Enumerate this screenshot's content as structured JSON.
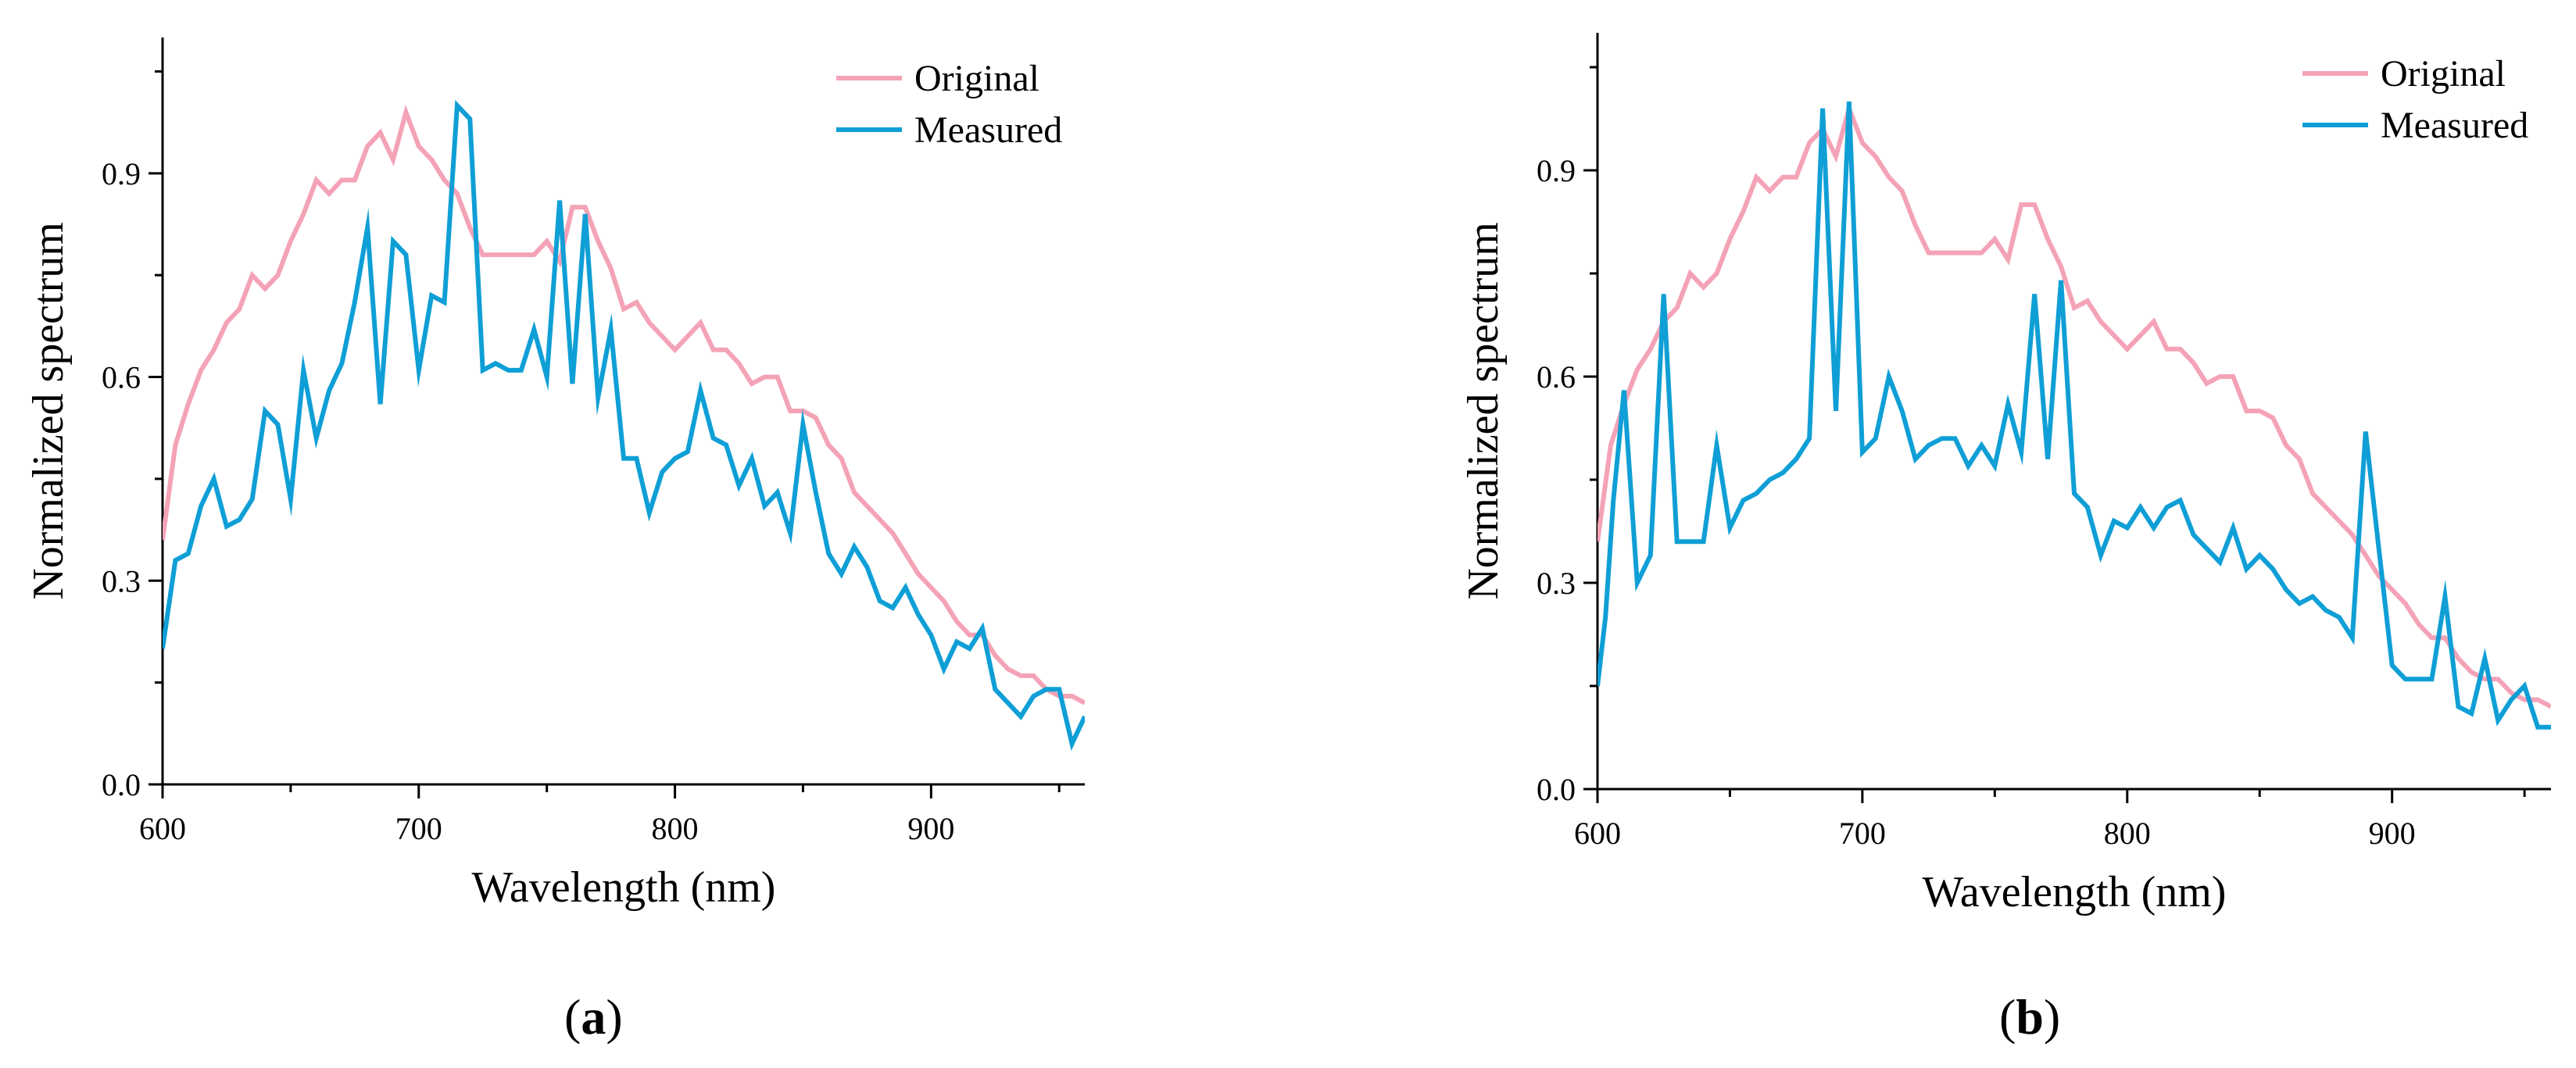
{
  "chart_data": [
    {
      "type": "line",
      "panel_label": "a",
      "xlabel": "Wavelength (nm)",
      "ylabel": "Normalized spectrum",
      "xlim": [
        600,
        960
      ],
      "ylim": [
        0,
        1.1
      ],
      "xticks": [
        600,
        700,
        800,
        900
      ],
      "yticks": [
        0.0,
        0.3,
        0.6,
        0.9
      ],
      "ytick_labels": [
        "0.0",
        "0.3",
        "0.6",
        "0.9"
      ],
      "legend_position": "top-right",
      "series": [
        {
          "name": "Original",
          "color": "#f4a3b7",
          "x": [
            600,
            605,
            610,
            615,
            620,
            625,
            630,
            635,
            640,
            645,
            650,
            655,
            660,
            665,
            670,
            675,
            680,
            685,
            690,
            695,
            700,
            705,
            710,
            715,
            720,
            725,
            730,
            735,
            740,
            745,
            750,
            755,
            760,
            765,
            770,
            775,
            780,
            785,
            790,
            795,
            800,
            805,
            810,
            815,
            820,
            825,
            830,
            835,
            840,
            845,
            850,
            855,
            860,
            865,
            870,
            875,
            880,
            885,
            890,
            895,
            900,
            905,
            910,
            915,
            920,
            925,
            930,
            935,
            940,
            945,
            950,
            955,
            960
          ],
          "values": [
            0.36,
            0.5,
            0.56,
            0.61,
            0.64,
            0.68,
            0.7,
            0.75,
            0.73,
            0.75,
            0.8,
            0.84,
            0.89,
            0.87,
            0.89,
            0.89,
            0.94,
            0.96,
            0.92,
            0.99,
            0.94,
            0.92,
            0.89,
            0.87,
            0.82,
            0.78,
            0.78,
            0.78,
            0.78,
            0.78,
            0.8,
            0.77,
            0.85,
            0.85,
            0.8,
            0.76,
            0.7,
            0.71,
            0.68,
            0.66,
            0.64,
            0.66,
            0.68,
            0.64,
            0.64,
            0.62,
            0.59,
            0.6,
            0.6,
            0.55,
            0.55,
            0.54,
            0.5,
            0.48,
            0.43,
            0.41,
            0.39,
            0.37,
            0.34,
            0.31,
            0.29,
            0.27,
            0.24,
            0.22,
            0.22,
            0.19,
            0.17,
            0.16,
            0.16,
            0.14,
            0.13,
            0.13,
            0.12
          ]
        },
        {
          "name": "Measured",
          "color": "#0f9fd6",
          "x": [
            600,
            605,
            610,
            615,
            620,
            625,
            630,
            635,
            640,
            645,
            650,
            655,
            660,
            665,
            670,
            675,
            680,
            685,
            690,
            695,
            700,
            705,
            710,
            715,
            720,
            725,
            730,
            735,
            740,
            745,
            750,
            755,
            760,
            765,
            770,
            775,
            780,
            785,
            790,
            795,
            800,
            805,
            810,
            815,
            820,
            825,
            830,
            835,
            840,
            845,
            850,
            855,
            860,
            865,
            870,
            875,
            880,
            885,
            890,
            895,
            900,
            905,
            910,
            915,
            920,
            925,
            930,
            935,
            940,
            945,
            950,
            955,
            960
          ],
          "values": [
            0.2,
            0.33,
            0.34,
            0.41,
            0.45,
            0.38,
            0.39,
            0.42,
            0.55,
            0.53,
            0.42,
            0.61,
            0.51,
            0.58,
            0.62,
            0.71,
            0.82,
            0.56,
            0.8,
            0.78,
            0.61,
            0.72,
            0.71,
            1.0,
            0.98,
            0.61,
            0.62,
            0.61,
            0.61,
            0.67,
            0.6,
            0.86,
            0.59,
            0.84,
            0.57,
            0.67,
            0.48,
            0.48,
            0.4,
            0.46,
            0.48,
            0.49,
            0.58,
            0.51,
            0.5,
            0.44,
            0.48,
            0.41,
            0.43,
            0.37,
            0.53,
            0.43,
            0.34,
            0.31,
            0.35,
            0.32,
            0.27,
            0.26,
            0.29,
            0.25,
            0.22,
            0.17,
            0.21,
            0.2,
            0.23,
            0.14,
            0.12,
            0.1,
            0.13,
            0.14,
            0.14,
            0.06,
            0.1
          ]
        }
      ]
    },
    {
      "type": "line",
      "panel_label": "b",
      "xlabel": "Wavelength (nm)",
      "ylabel": "Normalized spectrum",
      "xlim": [
        600,
        960
      ],
      "ylim": [
        0,
        1.1
      ],
      "xticks": [
        600,
        700,
        800,
        900
      ],
      "yticks": [
        0.0,
        0.3,
        0.6,
        0.9
      ],
      "ytick_labels": [
        "0.0",
        "0.3",
        "0.6",
        "0.9"
      ],
      "legend_position": "top-right",
      "series": [
        {
          "name": "Original",
          "color": "#f4a3b7",
          "x": [
            600,
            605,
            610,
            615,
            620,
            625,
            630,
            635,
            640,
            645,
            650,
            655,
            660,
            665,
            670,
            675,
            680,
            685,
            690,
            695,
            700,
            705,
            710,
            715,
            720,
            725,
            730,
            735,
            740,
            745,
            750,
            755,
            760,
            765,
            770,
            775,
            780,
            785,
            790,
            795,
            800,
            805,
            810,
            815,
            820,
            825,
            830,
            835,
            840,
            845,
            850,
            855,
            860,
            865,
            870,
            875,
            880,
            885,
            890,
            895,
            900,
            905,
            910,
            915,
            920,
            925,
            930,
            935,
            940,
            945,
            950,
            955,
            960
          ],
          "values": [
            0.36,
            0.5,
            0.56,
            0.61,
            0.64,
            0.68,
            0.7,
            0.75,
            0.73,
            0.75,
            0.8,
            0.84,
            0.89,
            0.87,
            0.89,
            0.89,
            0.94,
            0.96,
            0.92,
            0.99,
            0.94,
            0.92,
            0.89,
            0.87,
            0.82,
            0.78,
            0.78,
            0.78,
            0.78,
            0.78,
            0.8,
            0.77,
            0.85,
            0.85,
            0.8,
            0.76,
            0.7,
            0.71,
            0.68,
            0.66,
            0.64,
            0.66,
            0.68,
            0.64,
            0.64,
            0.62,
            0.59,
            0.6,
            0.6,
            0.55,
            0.55,
            0.54,
            0.5,
            0.48,
            0.43,
            0.41,
            0.39,
            0.37,
            0.34,
            0.31,
            0.29,
            0.27,
            0.24,
            0.22,
            0.22,
            0.19,
            0.17,
            0.16,
            0.16,
            0.14,
            0.13,
            0.13,
            0.12
          ]
        },
        {
          "name": "Measured",
          "color": "#0f9fd6",
          "x": [
            600,
            603,
            606,
            610,
            615,
            620,
            625,
            630,
            635,
            640,
            645,
            650,
            655,
            660,
            665,
            670,
            675,
            680,
            685,
            690,
            695,
            700,
            705,
            710,
            715,
            720,
            725,
            730,
            735,
            740,
            745,
            750,
            755,
            760,
            765,
            770,
            775,
            780,
            785,
            790,
            795,
            800,
            805,
            810,
            815,
            820,
            825,
            830,
            835,
            840,
            845,
            850,
            855,
            860,
            865,
            870,
            875,
            880,
            885,
            890,
            895,
            900,
            905,
            910,
            915,
            920,
            925,
            930,
            935,
            940,
            945,
            950,
            955,
            960
          ],
          "values": [
            0.15,
            0.25,
            0.42,
            0.58,
            0.3,
            0.34,
            0.72,
            0.36,
            0.36,
            0.36,
            0.5,
            0.38,
            0.42,
            0.43,
            0.45,
            0.46,
            0.48,
            0.51,
            0.99,
            0.55,
            1.0,
            0.49,
            0.51,
            0.6,
            0.55,
            0.48,
            0.5,
            0.51,
            0.51,
            0.47,
            0.5,
            0.47,
            0.56,
            0.49,
            0.72,
            0.48,
            0.74,
            0.43,
            0.41,
            0.34,
            0.39,
            0.38,
            0.41,
            0.38,
            0.41,
            0.42,
            0.37,
            0.35,
            0.33,
            0.38,
            0.32,
            0.34,
            0.32,
            0.29,
            0.27,
            0.28,
            0.26,
            0.25,
            0.22,
            0.52,
            0.35,
            0.18,
            0.16,
            0.16,
            0.16,
            0.28,
            0.12,
            0.11,
            0.19,
            0.1,
            0.13,
            0.15,
            0.09,
            0.09
          ]
        }
      ]
    }
  ],
  "captions": {
    "a": "a",
    "b": "b"
  }
}
